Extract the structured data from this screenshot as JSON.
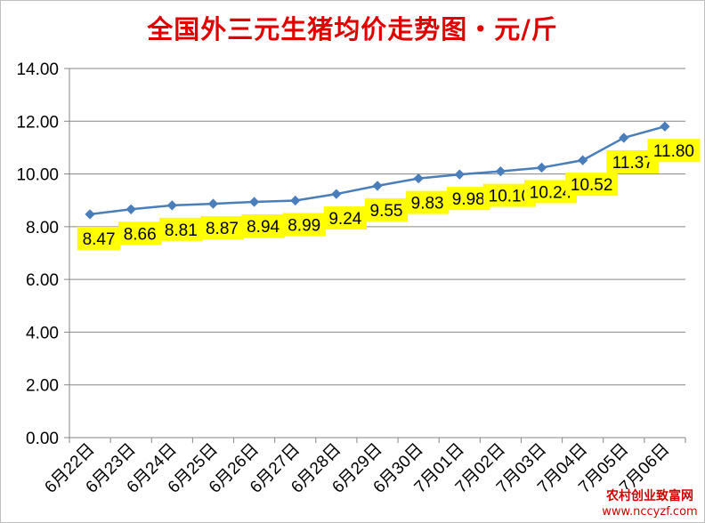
{
  "chart_data": {
    "type": "line",
    "title": "全国外三元生猪均价走势图・元/斤",
    "categories": [
      "6月22日",
      "6月23日",
      "6月24日",
      "6月25日",
      "6月26日",
      "6月27日",
      "6月28日",
      "6月29日",
      "6月30日",
      "7月01日",
      "7月02日",
      "7月03日",
      "7月04日",
      "7月05日",
      "7月06日"
    ],
    "series": [
      {
        "values": [
          8.47,
          8.66,
          8.81,
          8.87,
          8.94,
          8.99,
          9.24,
          9.55,
          9.83,
          9.98,
          10.1,
          10.24,
          10.52,
          11.37,
          11.8
        ]
      }
    ],
    "value_labels": [
      "8.47",
      "8.66",
      "8.81",
      "8.87",
      "8.94",
      "8.99",
      "9.24",
      "9.55",
      "9.83",
      "9.98",
      "10.10",
      "10.24",
      "10.52",
      "11.37",
      "11.80"
    ],
    "ylim": [
      0,
      14
    ],
    "yticks": [
      "0.00",
      "2.00",
      "4.00",
      "6.00",
      "8.00",
      "10.00",
      "12.00",
      "14.00"
    ],
    "grid": true,
    "legend": "none",
    "line_color": "#4a7ebb",
    "label_bg_color": "#ffff00"
  },
  "watermark": {
    "name": "农村创业致富网",
    "url": "www.nccyzf.com"
  }
}
